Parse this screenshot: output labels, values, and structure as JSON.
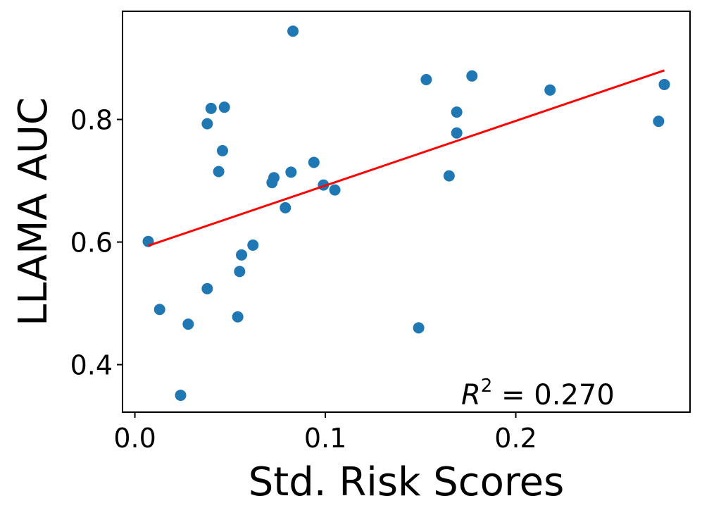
{
  "chart_data": {
    "type": "scatter",
    "title": "",
    "xlabel": "Std. Risk Scores",
    "ylabel": "LLAMA AUC",
    "xlim": [
      -0.0065,
      0.2915
    ],
    "ylim": [
      0.3225,
      0.9765
    ],
    "xticks": [
      0.0,
      0.1,
      0.2
    ],
    "xtick_labels": [
      "0.0",
      "0.1",
      "0.2"
    ],
    "yticks": [
      0.4,
      0.6,
      0.8
    ],
    "ytick_labels": [
      "0.4",
      "0.6",
      "0.8"
    ],
    "grid": false,
    "colors": {
      "points": "#1f77b4",
      "fit_line": "#ff0000"
    },
    "points": [
      {
        "x": 0.007,
        "y": 0.601
      },
      {
        "x": 0.013,
        "y": 0.49
      },
      {
        "x": 0.024,
        "y": 0.35
      },
      {
        "x": 0.028,
        "y": 0.466
      },
      {
        "x": 0.038,
        "y": 0.524
      },
      {
        "x": 0.038,
        "y": 0.793
      },
      {
        "x": 0.04,
        "y": 0.818
      },
      {
        "x": 0.044,
        "y": 0.715
      },
      {
        "x": 0.046,
        "y": 0.749
      },
      {
        "x": 0.047,
        "y": 0.82
      },
      {
        "x": 0.054,
        "y": 0.478
      },
      {
        "x": 0.055,
        "y": 0.552
      },
      {
        "x": 0.056,
        "y": 0.579
      },
      {
        "x": 0.062,
        "y": 0.595
      },
      {
        "x": 0.072,
        "y": 0.697
      },
      {
        "x": 0.073,
        "y": 0.705
      },
      {
        "x": 0.079,
        "y": 0.656
      },
      {
        "x": 0.082,
        "y": 0.714
      },
      {
        "x": 0.083,
        "y": 0.944
      },
      {
        "x": 0.094,
        "y": 0.73
      },
      {
        "x": 0.099,
        "y": 0.693
      },
      {
        "x": 0.105,
        "y": 0.685
      },
      {
        "x": 0.149,
        "y": 0.46
      },
      {
        "x": 0.153,
        "y": 0.865
      },
      {
        "x": 0.165,
        "y": 0.708
      },
      {
        "x": 0.169,
        "y": 0.812
      },
      {
        "x": 0.169,
        "y": 0.778
      },
      {
        "x": 0.177,
        "y": 0.871
      },
      {
        "x": 0.218,
        "y": 0.848
      },
      {
        "x": 0.275,
        "y": 0.797
      },
      {
        "x": 0.278,
        "y": 0.857
      }
    ],
    "fit_line": {
      "x": [
        0.007,
        0.278
      ],
      "y": [
        0.594,
        0.88
      ]
    },
    "annotation": {
      "prefix": "R",
      "superscript": "2",
      "suffix": " = 0.270"
    }
  }
}
